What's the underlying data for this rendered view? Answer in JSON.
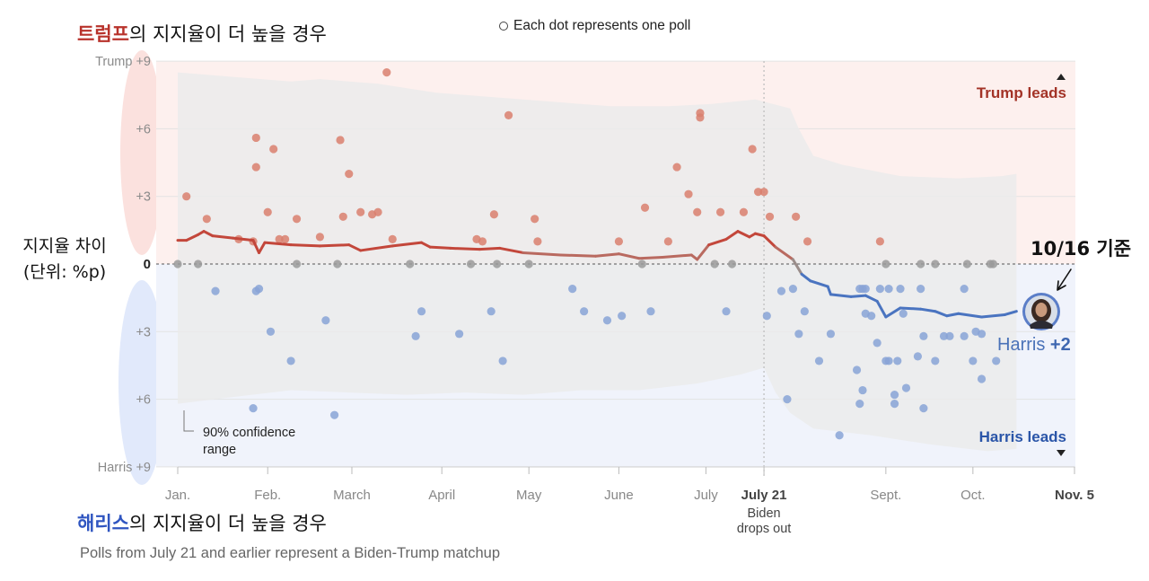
{
  "headings": {
    "top_party": "트럼프",
    "top_rest": "의 지지율이 더 높을 경우",
    "bottom_party": "해리스",
    "bottom_rest": "의 지지율이 더 높을 경우"
  },
  "legend_note": "Each dot represents one poll",
  "y_axis_title_line1": "지지율 차이",
  "y_axis_title_line2": "(단위: %p)",
  "as_of_label": "10/16 기준",
  "footnote": "Polls from July 21 and earlier represent a Biden-Trump matchup",
  "colors": {
    "trump": "#b8322b",
    "harris": "#2f55c0",
    "trump_dot": "#d9806f",
    "harris_dot": "#88a3d6",
    "tie_dot": "#9a9a9a",
    "trump_bg": "#fdf0ee",
    "harris_bg": "#f0f3fb",
    "band": "#ebebeb"
  },
  "chart_data": {
    "type": "scatter",
    "title": "",
    "xlabel": "",
    "ylabel": "지지율 차이 (단위: %p)",
    "x_unit": "day of 2024 (Jan. 1 = 1)",
    "xlim": [
      1,
      310
    ],
    "ylim": [
      -9,
      9
    ],
    "y_ticks": [
      {
        "value": 9,
        "label": "Trump +9"
      },
      {
        "value": 6,
        "label": "+6"
      },
      {
        "value": 3,
        "label": "+3"
      },
      {
        "value": 0,
        "label": "0"
      },
      {
        "value": -3,
        "label": "+3"
      },
      {
        "value": -6,
        "label": "+6"
      },
      {
        "value": -9,
        "label": "Harris +9"
      }
    ],
    "x_ticks": [
      {
        "day": 1,
        "label": "Jan."
      },
      {
        "day": 32,
        "label": "Feb."
      },
      {
        "day": 61,
        "label": "March"
      },
      {
        "day": 92,
        "label": "April"
      },
      {
        "day": 122,
        "label": "May"
      },
      {
        "day": 153,
        "label": "June"
      },
      {
        "day": 183,
        "label": "July"
      },
      {
        "day": 203,
        "label": "July 21",
        "bold": true
      },
      {
        "day": 245,
        "label": "Sept."
      },
      {
        "day": 275,
        "label": "Oct."
      },
      {
        "day": 310,
        "label": "Nov. 5",
        "bold": true
      }
    ],
    "event": {
      "day": 203,
      "line1": "Biden",
      "line2": "drops out"
    },
    "region_labels": {
      "trump": "Trump leads",
      "harris": "Harris leads"
    },
    "confidence_label_line1": "90% confidence",
    "confidence_label_line2": "range",
    "final": {
      "label": "Harris ",
      "value": "+2",
      "margin": -2.1,
      "day": 290
    },
    "average": [
      [
        1,
        1.05
      ],
      [
        4,
        1.05
      ],
      [
        8,
        1.3
      ],
      [
        10,
        1.45
      ],
      [
        13,
        1.25
      ],
      [
        20,
        1.15
      ],
      [
        27,
        1.05
      ],
      [
        29,
        0.5
      ],
      [
        31,
        0.95
      ],
      [
        40,
        0.85
      ],
      [
        50,
        0.8
      ],
      [
        60,
        0.85
      ],
      [
        64,
        0.6
      ],
      [
        75,
        0.8
      ],
      [
        85,
        0.95
      ],
      [
        88,
        0.75
      ],
      [
        95,
        0.7
      ],
      [
        105,
        0.65
      ],
      [
        112,
        0.7
      ],
      [
        120,
        0.5
      ],
      [
        133,
        0.4
      ],
      [
        145,
        0.35
      ],
      [
        153,
        0.45
      ],
      [
        160,
        0.25
      ],
      [
        168,
        0.3
      ],
      [
        178,
        0.4
      ],
      [
        180,
        0.2
      ],
      [
        184,
        0.85
      ],
      [
        190,
        1.1
      ],
      [
        194,
        1.45
      ],
      [
        198,
        1.2
      ],
      [
        200,
        1.35
      ],
      [
        203,
        1.25
      ],
      [
        207,
        0.75
      ],
      [
        213,
        0.2
      ],
      [
        216,
        -0.45
      ],
      [
        219,
        -0.75
      ],
      [
        225,
        -1.0
      ],
      [
        226,
        -1.35
      ],
      [
        233,
        -1.45
      ],
      [
        238,
        -1.4
      ],
      [
        242,
        -1.65
      ],
      [
        245,
        -2.35
      ],
      [
        250,
        -1.95
      ],
      [
        257,
        -2.0
      ],
      [
        262,
        -2.1
      ],
      [
        266,
        -2.3
      ],
      [
        270,
        -2.2
      ],
      [
        278,
        -2.35
      ],
      [
        286,
        -2.25
      ],
      [
        290,
        -2.1
      ]
    ],
    "band_upper": [
      [
        1,
        8.5
      ],
      [
        20,
        8.3
      ],
      [
        40,
        8.1
      ],
      [
        50,
        8.2
      ],
      [
        70,
        8.0
      ],
      [
        90,
        7.6
      ],
      [
        110,
        7.4
      ],
      [
        130,
        7.2
      ],
      [
        150,
        7.0
      ],
      [
        170,
        7.0
      ],
      [
        185,
        7.1
      ],
      [
        200,
        7.3
      ],
      [
        212,
        6.9
      ],
      [
        215,
        6.0
      ],
      [
        220,
        4.8
      ],
      [
        230,
        4.4
      ],
      [
        250,
        3.9
      ],
      [
        270,
        3.8
      ],
      [
        285,
        3.9
      ],
      [
        290,
        4.0
      ]
    ],
    "band_lower": [
      [
        1,
        -6.2
      ],
      [
        20,
        -5.9
      ],
      [
        40,
        -5.6
      ],
      [
        60,
        -5.7
      ],
      [
        80,
        -5.8
      ],
      [
        100,
        -5.7
      ],
      [
        120,
        -5.8
      ],
      [
        140,
        -5.6
      ],
      [
        160,
        -5.6
      ],
      [
        180,
        -5.3
      ],
      [
        195,
        -4.9
      ],
      [
        203,
        -4.6
      ],
      [
        207,
        -5.7
      ],
      [
        212,
        -6.6
      ],
      [
        220,
        -7.3
      ],
      [
        240,
        -7.6
      ],
      [
        260,
        -8.0
      ],
      [
        280,
        -8.3
      ],
      [
        290,
        -8.2
      ]
    ],
    "polls_trump": [
      [
        4,
        3.0
      ],
      [
        11,
        2.0
      ],
      [
        22,
        1.1
      ],
      [
        27,
        1.0
      ],
      [
        28,
        5.6
      ],
      [
        28,
        4.3
      ],
      [
        32,
        2.3
      ],
      [
        34,
        5.1
      ],
      [
        36,
        1.1
      ],
      [
        38,
        1.1
      ],
      [
        42,
        2.0
      ],
      [
        50,
        1.2
      ],
      [
        57,
        5.5
      ],
      [
        58,
        2.1
      ],
      [
        60,
        4.0
      ],
      [
        64,
        2.3
      ],
      [
        68,
        2.2
      ],
      [
        70,
        2.3
      ],
      [
        73,
        8.5
      ],
      [
        75,
        1.1
      ],
      [
        104,
        1.1
      ],
      [
        106,
        1.0
      ],
      [
        110,
        2.2
      ],
      [
        115,
        6.6
      ],
      [
        124,
        2.0
      ],
      [
        125,
        1.0
      ],
      [
        153,
        1.0
      ],
      [
        162,
        2.5
      ],
      [
        170,
        1.0
      ],
      [
        173,
        4.3
      ],
      [
        177,
        3.1
      ],
      [
        180,
        2.3
      ],
      [
        181,
        6.7
      ],
      [
        181,
        6.5
      ],
      [
        188,
        2.3
      ],
      [
        196,
        2.3
      ],
      [
        199,
        5.1
      ],
      [
        201,
        3.2
      ],
      [
        203,
        3.2
      ],
      [
        205,
        2.1
      ],
      [
        214,
        2.1
      ],
      [
        218,
        1.0
      ],
      [
        243,
        1.0
      ]
    ],
    "polls_tie": [
      [
        1,
        0
      ],
      [
        8,
        0
      ],
      [
        42,
        0
      ],
      [
        56,
        0
      ],
      [
        81,
        0
      ],
      [
        102,
        0
      ],
      [
        111,
        0
      ],
      [
        122,
        0
      ],
      [
        161,
        0
      ],
      [
        186,
        0
      ],
      [
        192,
        0
      ],
      [
        245,
        0
      ],
      [
        257,
        0
      ],
      [
        262,
        0
      ],
      [
        273,
        0
      ],
      [
        281,
        0
      ],
      [
        282,
        0
      ]
    ],
    "polls_harris": [
      [
        14,
        -1.2
      ],
      [
        27,
        -6.4
      ],
      [
        28,
        -1.2
      ],
      [
        29,
        -1.1
      ],
      [
        33,
        -3.0
      ],
      [
        40,
        -4.3
      ],
      [
        52,
        -2.5
      ],
      [
        55,
        -6.7
      ],
      [
        83,
        -3.2
      ],
      [
        85,
        -2.1
      ],
      [
        98,
        -3.1
      ],
      [
        109,
        -2.1
      ],
      [
        113,
        -4.3
      ],
      [
        137,
        -1.1
      ],
      [
        141,
        -2.1
      ],
      [
        149,
        -2.5
      ],
      [
        154,
        -2.3
      ],
      [
        164,
        -2.1
      ],
      [
        190,
        -2.1
      ],
      [
        204,
        -2.3
      ],
      [
        209,
        -1.2
      ],
      [
        211,
        -6.0
      ],
      [
        213,
        -1.1
      ],
      [
        215,
        -3.1
      ],
      [
        217,
        -2.1
      ],
      [
        222,
        -4.3
      ],
      [
        226,
        -3.1
      ],
      [
        229,
        -7.6
      ],
      [
        235,
        -4.7
      ],
      [
        236,
        -1.1
      ],
      [
        236,
        -6.2
      ],
      [
        237,
        -1.1
      ],
      [
        237,
        -5.6
      ],
      [
        238,
        -2.2
      ],
      [
        238,
        -1.1
      ],
      [
        240,
        -2.3
      ],
      [
        242,
        -3.5
      ],
      [
        243,
        -1.1
      ],
      [
        245,
        -4.3
      ],
      [
        246,
        -4.3
      ],
      [
        246,
        -1.1
      ],
      [
        248,
        -5.8
      ],
      [
        248,
        -6.2
      ],
      [
        249,
        -4.3
      ],
      [
        250,
        -1.1
      ],
      [
        251,
        -2.2
      ],
      [
        252,
        -5.5
      ],
      [
        256,
        -4.1
      ],
      [
        257,
        -1.1
      ],
      [
        258,
        -6.4
      ],
      [
        258,
        -3.2
      ],
      [
        262,
        -4.3
      ],
      [
        265,
        -3.2
      ],
      [
        267,
        -3.2
      ],
      [
        272,
        -1.1
      ],
      [
        272,
        -3.2
      ],
      [
        275,
        -4.3
      ],
      [
        276,
        -3.0
      ],
      [
        278,
        -5.1
      ],
      [
        278,
        -3.1
      ],
      [
        283,
        -4.3
      ]
    ]
  }
}
